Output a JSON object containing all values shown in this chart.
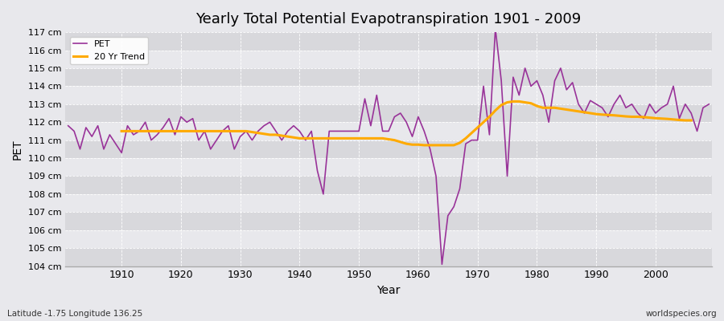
{
  "title": "Yearly Total Potential Evapotranspiration 1901 - 2009",
  "xlabel": "Year",
  "ylabel": "PET",
  "subtitle_left": "Latitude -1.75 Longitude 136.25",
  "subtitle_right": "worldspecies.org",
  "legend_pet": "PET",
  "legend_trend": "20 Yr Trend",
  "pet_color": "#993399",
  "trend_color": "#ffaa00",
  "background_color": "#e8e8ec",
  "plot_bg_color": "#e8e8ec",
  "grid_color": "#ffffff",
  "ylim": [
    104,
    117
  ],
  "ytick_step": 1,
  "years": [
    1901,
    1902,
    1903,
    1904,
    1905,
    1906,
    1907,
    1908,
    1909,
    1910,
    1911,
    1912,
    1913,
    1914,
    1915,
    1916,
    1917,
    1918,
    1919,
    1920,
    1921,
    1922,
    1923,
    1924,
    1925,
    1926,
    1927,
    1928,
    1929,
    1930,
    1931,
    1932,
    1933,
    1934,
    1935,
    1936,
    1937,
    1938,
    1939,
    1940,
    1941,
    1942,
    1943,
    1944,
    1945,
    1946,
    1947,
    1948,
    1949,
    1950,
    1951,
    1952,
    1953,
    1954,
    1955,
    1956,
    1957,
    1958,
    1959,
    1960,
    1961,
    1962,
    1963,
    1964,
    1965,
    1966,
    1967,
    1968,
    1969,
    1970,
    1971,
    1972,
    1973,
    1974,
    1975,
    1976,
    1977,
    1978,
    1979,
    1980,
    1981,
    1982,
    1983,
    1984,
    1985,
    1986,
    1987,
    1988,
    1989,
    1990,
    1991,
    1992,
    1993,
    1994,
    1995,
    1996,
    1997,
    1998,
    1999,
    2000,
    2001,
    2002,
    2003,
    2004,
    2005,
    2006,
    2007,
    2008,
    2009
  ],
  "pet_values": [
    111.8,
    111.5,
    110.5,
    111.7,
    111.2,
    111.8,
    110.5,
    111.3,
    110.8,
    110.3,
    111.8,
    111.3,
    111.5,
    112.0,
    111.0,
    111.3,
    111.7,
    112.2,
    111.3,
    112.3,
    112.0,
    112.2,
    111.0,
    111.5,
    110.5,
    111.0,
    111.5,
    111.8,
    110.5,
    111.2,
    111.5,
    111.0,
    111.5,
    111.8,
    112.0,
    111.5,
    111.0,
    111.5,
    111.8,
    111.5,
    111.0,
    111.5,
    109.3,
    108.0,
    111.5,
    111.5,
    111.5,
    111.5,
    111.5,
    111.5,
    113.3,
    111.8,
    113.5,
    111.5,
    111.5,
    112.3,
    112.5,
    112.0,
    111.2,
    112.3,
    111.5,
    110.5,
    109.0,
    104.1,
    106.8,
    107.3,
    108.3,
    110.8,
    111.0,
    111.0,
    114.0,
    111.3,
    117.2,
    114.3,
    109.0,
    114.5,
    113.5,
    115.0,
    114.0,
    114.3,
    113.5,
    112.0,
    114.3,
    115.0,
    113.8,
    114.2,
    113.0,
    112.5,
    113.2,
    113.0,
    112.8,
    112.3,
    113.0,
    113.5,
    112.8,
    113.0,
    112.5,
    112.2,
    113.0,
    112.5,
    112.8,
    113.0,
    114.0,
    112.2,
    113.0,
    112.5,
    111.5,
    112.8,
    113.0
  ],
  "trend_values": [
    null,
    null,
    null,
    null,
    null,
    null,
    null,
    null,
    null,
    111.5,
    111.5,
    111.5,
    111.5,
    111.5,
    111.5,
    111.5,
    111.5,
    111.5,
    111.5,
    111.5,
    111.5,
    111.5,
    111.5,
    111.5,
    111.5,
    111.5,
    111.5,
    111.5,
    111.5,
    111.5,
    111.5,
    111.45,
    111.4,
    111.35,
    111.3,
    111.3,
    111.25,
    111.2,
    111.15,
    111.1,
    111.1,
    111.1,
    111.1,
    111.1,
    111.1,
    111.1,
    111.1,
    111.1,
    111.1,
    111.1,
    111.1,
    111.1,
    111.1,
    111.1,
    111.05,
    111.0,
    110.9,
    110.8,
    110.75,
    110.75,
    110.72,
    110.72,
    110.72,
    110.72,
    110.72,
    110.72,
    110.85,
    111.1,
    111.4,
    111.7,
    112.0,
    112.3,
    112.65,
    112.95,
    113.1,
    113.15,
    113.15,
    113.1,
    113.05,
    112.9,
    112.8,
    112.8,
    112.8,
    112.75,
    112.7,
    112.65,
    112.6,
    112.55,
    112.5,
    112.45,
    112.42,
    112.4,
    112.38,
    112.35,
    112.32,
    112.3,
    112.3,
    112.28,
    112.25,
    112.22,
    112.2,
    112.18,
    112.15,
    112.12,
    112.1,
    112.1
  ]
}
